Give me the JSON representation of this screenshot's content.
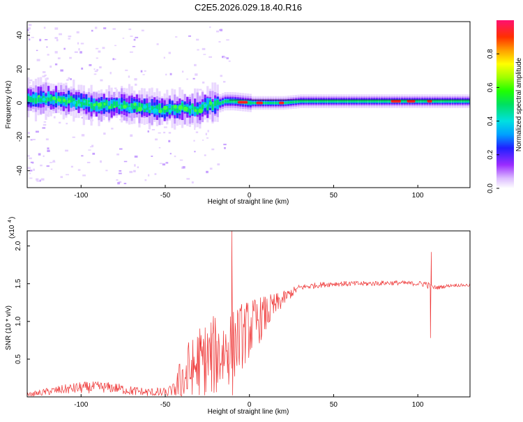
{
  "title": "C2E5.2026.029.18.40.R16",
  "chart_data": [
    {
      "type": "heatmap",
      "xlabel": "Height of straight line (km)",
      "ylabel": "Frequency (Hz)",
      "xlim": [
        -132,
        131
      ],
      "ylim": [
        -50,
        48
      ],
      "x_ticks": [
        -100,
        -50,
        0,
        50,
        100
      ],
      "y_ticks": [
        -40,
        -20,
        0,
        20,
        40
      ],
      "colorbar": {
        "label": "Normalized spectral amplitude",
        "range": [
          0,
          1
        ],
        "ticks": [
          "0.0",
          "0.2",
          "0.4",
          "0.6",
          "0.8"
        ],
        "tick_values": [
          0.0,
          0.2,
          0.4,
          0.6,
          0.8
        ]
      },
      "ridge": {
        "x": [
          -132,
          -120,
          -110,
          -100,
          -90,
          -80,
          -70,
          -60,
          -50,
          -40,
          -30,
          -25,
          -20,
          -15,
          -10,
          0,
          10,
          20,
          30,
          40,
          50,
          60,
          70,
          80,
          90,
          100,
          110,
          120,
          131
        ],
        "freq": [
          2,
          3,
          2,
          0,
          -2,
          -1,
          -2,
          -3,
          -4,
          -3,
          -4,
          -1,
          -1,
          1,
          1,
          0,
          0,
          0,
          1,
          1,
          1,
          1,
          1,
          1,
          1,
          1,
          1,
          1,
          1
        ]
      }
    },
    {
      "type": "line",
      "xlabel": "Height of straight line (km)",
      "ylabel": "SNR (10 * v/v)",
      "y_multiplier": "(x10^4)",
      "xlim": [
        -132,
        131
      ],
      "ylim": [
        0,
        2.2
      ],
      "x_ticks": [
        -100,
        -50,
        0,
        50,
        100
      ],
      "y_ticks": [
        "0.5",
        "1.0",
        "1.5",
        "2.0"
      ],
      "y_tick_values": [
        0.5,
        1.0,
        1.5,
        2.0
      ],
      "color": "#ee3333",
      "envelope": {
        "x": [
          -132,
          -120,
          -110,
          -100,
          -90,
          -80,
          -70,
          -60,
          -50,
          -45,
          -40,
          -35,
          -30,
          -25,
          -20,
          -15,
          -10,
          -5,
          0,
          5,
          10,
          15,
          20,
          25,
          30,
          40,
          50,
          60,
          70,
          80,
          90,
          100,
          105,
          108,
          112,
          120,
          131
        ],
        "y": [
          0.02,
          0.07,
          0.1,
          0.12,
          0.13,
          0.12,
          0.08,
          0.06,
          0.05,
          0.1,
          0.2,
          0.35,
          0.45,
          0.5,
          0.55,
          0.6,
          0.7,
          0.8,
          0.9,
          1.0,
          1.1,
          1.2,
          1.3,
          1.38,
          1.45,
          1.48,
          1.5,
          1.5,
          1.5,
          1.51,
          1.51,
          1.5,
          1.5,
          1.45,
          1.45,
          1.48,
          1.48
        ]
      },
      "noise": {
        "x": [
          -132,
          -100,
          -60,
          -45,
          -40,
          -30,
          -20,
          -10,
          0,
          10,
          20,
          25,
          30,
          100,
          105,
          110,
          120,
          131
        ],
        "amp": [
          0.03,
          0.08,
          0.06,
          0.08,
          0.4,
          0.5,
          0.55,
          0.5,
          0.4,
          0.25,
          0.1,
          0.07,
          0.04,
          0.03,
          0.05,
          0.03,
          0.02,
          0.02
        ]
      },
      "spikes": [
        {
          "x": -10.5,
          "y": 2.2
        },
        {
          "x": -10.0,
          "y": 0.02
        },
        {
          "x": 108.0,
          "y": 1.92
        },
        {
          "x": 107.5,
          "y": 0.78
        }
      ]
    }
  ]
}
